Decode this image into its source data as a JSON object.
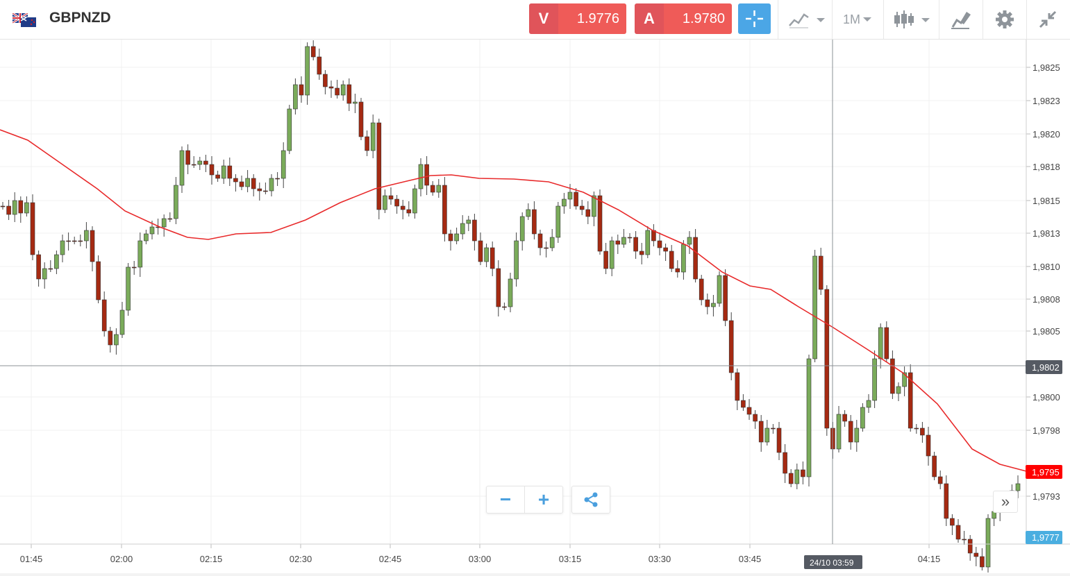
{
  "header": {
    "symbol": "GBPNZD",
    "sell": {
      "letter": "V",
      "price": "1.9776"
    },
    "buy": {
      "letter": "A",
      "price": "1.9780"
    },
    "timeframe": "1M"
  },
  "chart": {
    "price_labels": [
      "1,9825",
      "1,9823",
      "1,9820",
      "1,9818",
      "1,9815",
      "1,9813",
      "1,9810",
      "1,9808",
      "1,9805",
      "1,9800",
      "1,9798",
      "1,9793"
    ],
    "time_labels": [
      "01:45",
      "02:00",
      "02:15",
      "02:30",
      "02:45",
      "03:00",
      "03:15",
      "03:30",
      "03:45",
      "04:15"
    ],
    "crosshair_price": "1,9802",
    "crosshair_time": "24/10 03:59",
    "current_price": "1,9795",
    "ask_marker": "1,9777",
    "colors": {
      "bull": "#7aab5a",
      "bear": "#a52a12",
      "ma": "#e8292a",
      "current": "#ff0000",
      "ask": "#4aaee0",
      "crosshair": "#555a63"
    }
  },
  "controls": {
    "zoom_out": "−",
    "zoom_in": "+",
    "scroll_right": "»"
  }
}
